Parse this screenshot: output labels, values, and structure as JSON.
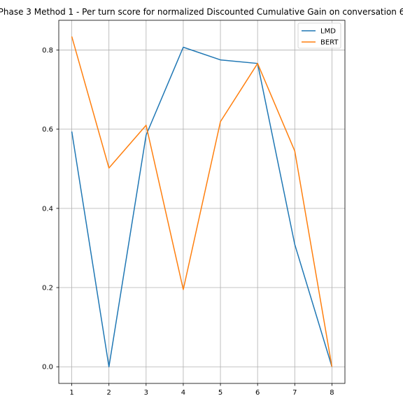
{
  "chart_data": {
    "type": "line",
    "title": "Phase 3 Method 1 - Per turn score for normalized Discounted Cumulative Gain on conversation 6",
    "xlabel": "",
    "ylabel": "",
    "x": [
      1,
      2,
      3,
      4,
      5,
      6,
      7,
      8
    ],
    "xticks": [
      "1",
      "2",
      "3",
      "4",
      "5",
      "6",
      "7",
      "8"
    ],
    "yticks": [
      "0.0",
      "0.2",
      "0.4",
      "0.6",
      "0.8"
    ],
    "xlim": [
      0.65,
      8.35
    ],
    "ylim": [
      -0.042,
      0.875
    ],
    "grid": true,
    "legend_position": "top-right",
    "series": [
      {
        "name": "LMD",
        "color": "#1f77b4",
        "values": [
          0.594,
          0.0,
          0.585,
          0.807,
          0.775,
          0.766,
          0.309,
          0.0
        ]
      },
      {
        "name": "BERT",
        "color": "#ff7f0e",
        "values": [
          0.834,
          0.502,
          0.61,
          0.195,
          0.619,
          0.766,
          0.545,
          0.0
        ]
      }
    ]
  }
}
